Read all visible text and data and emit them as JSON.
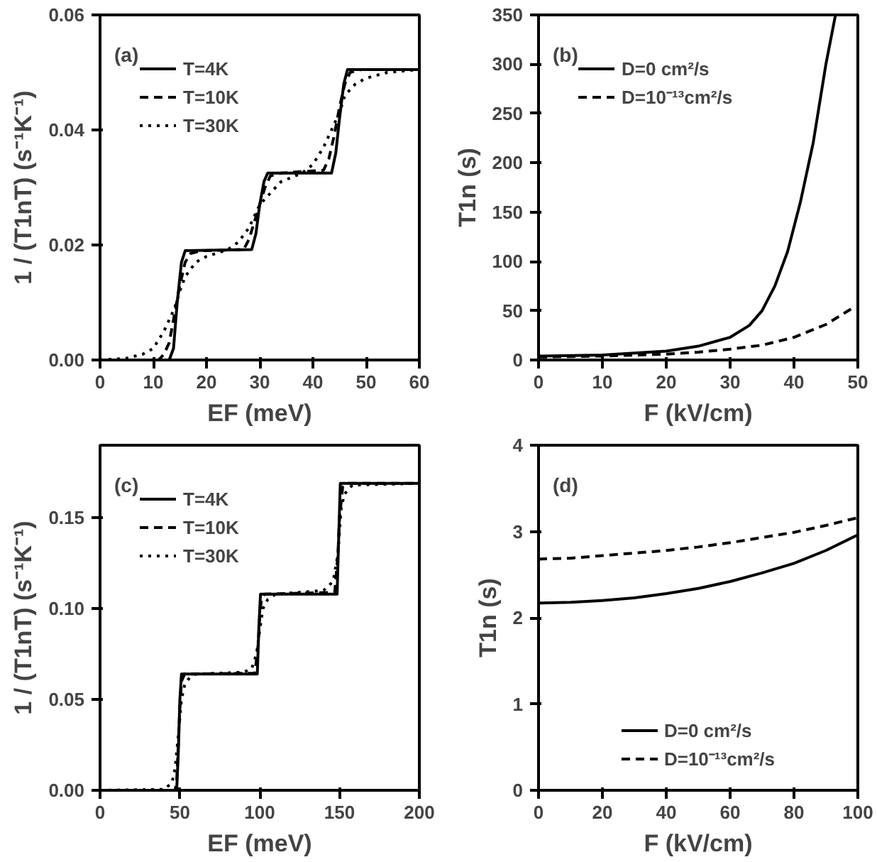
{
  "chart_data": [
    {
      "type": "line",
      "xlabel": "EF (meV)",
      "ylabel": "1 / (T1nT) (s⁻¹K⁻¹)",
      "annotations": [
        "(a)"
      ],
      "xlim": [
        0,
        60
      ],
      "ylim": [
        0,
        0.06
      ],
      "xticks": [
        0,
        10,
        20,
        30,
        40,
        50,
        60
      ],
      "yticks": [
        {
          "value": 0,
          "label": "0.00"
        },
        {
          "value": 0.02,
          "label": "0.02"
        },
        {
          "value": 0.04,
          "label": "0.04"
        },
        {
          "value": 0.06,
          "label": "0.06"
        }
      ],
      "grid": false,
      "legend": "top left",
      "series": [
        {
          "name": "T=4K",
          "color": "#000000",
          "line_style": "solid",
          "x": [
            0,
            13,
            13.8,
            14.5,
            15.3,
            16,
            28.5,
            29.3,
            30,
            30.8,
            31.5,
            43.5,
            44.3,
            45,
            45.8,
            46.5,
            60
          ],
          "values": [
            0,
            0,
            0.002,
            0.01,
            0.017,
            0.019,
            0.0192,
            0.022,
            0.027,
            0.031,
            0.0325,
            0.0325,
            0.036,
            0.042,
            0.048,
            0.0505,
            0.0505
          ]
        },
        {
          "name": "T=10K",
          "color": "#000000",
          "line_style": "dashed",
          "x": [
            0,
            11,
            12,
            13,
            14,
            15,
            16,
            17,
            19,
            27,
            28,
            29,
            30,
            31,
            32,
            34,
            42,
            43,
            44,
            45,
            46,
            47,
            49,
            60
          ],
          "values": [
            0,
            0,
            0.001,
            0.003,
            0.008,
            0.013,
            0.017,
            0.0185,
            0.019,
            0.0192,
            0.021,
            0.024,
            0.027,
            0.03,
            0.032,
            0.0325,
            0.033,
            0.035,
            0.039,
            0.044,
            0.048,
            0.05,
            0.0505,
            0.0505
          ]
        },
        {
          "name": "T=30K",
          "color": "#000000",
          "line_style": "dotted",
          "x": [
            0,
            5,
            8,
            10,
            12,
            14,
            15,
            16,
            18,
            20,
            24,
            26,
            28,
            30,
            32,
            34,
            38,
            40,
            42,
            44,
            45,
            46,
            48,
            50,
            54,
            60
          ],
          "values": [
            0,
            0.0003,
            0.001,
            0.002,
            0.005,
            0.009,
            0.012,
            0.0145,
            0.017,
            0.018,
            0.0192,
            0.0205,
            0.023,
            0.027,
            0.029,
            0.031,
            0.0325,
            0.034,
            0.037,
            0.041,
            0.043,
            0.046,
            0.048,
            0.049,
            0.05,
            0.0505
          ]
        }
      ]
    },
    {
      "type": "line",
      "xlabel": "F (kV/cm)",
      "ylabel": "T1n (s)",
      "annotations": [
        "(b)"
      ],
      "xlim": [
        0,
        50
      ],
      "ylim": [
        0,
        350
      ],
      "xticks": [
        0,
        10,
        20,
        30,
        40,
        50
      ],
      "yticks": [
        0,
        50,
        100,
        150,
        200,
        250,
        300,
        350
      ],
      "grid": false,
      "legend": "top left",
      "series": [
        {
          "name": "D=0 cm²/s",
          "color": "#000000",
          "line_style": "solid",
          "x": [
            0,
            10,
            20,
            25,
            30,
            33,
            35,
            37,
            39,
            41,
            43,
            45,
            46.5
          ],
          "values": [
            4,
            5,
            9,
            14,
            23,
            35,
            50,
            75,
            110,
            160,
            220,
            300,
            350
          ]
        },
        {
          "name": "D=10⁻¹³cm²/s",
          "color": "#000000",
          "line_style": "dashed",
          "x": [
            0,
            10,
            20,
            25,
            30,
            35,
            40,
            45,
            49
          ],
          "values": [
            3,
            4,
            6,
            8,
            11,
            15,
            23,
            36,
            52
          ]
        }
      ]
    },
    {
      "type": "line",
      "xlabel": "EF (meV)",
      "ylabel": "1 / (T1nT) (s⁻¹K⁻¹)",
      "annotations": [
        "(c)"
      ],
      "xlim": [
        0,
        200
      ],
      "ylim": [
        0,
        0.19
      ],
      "xticks": [
        0,
        50,
        100,
        150,
        200
      ],
      "yticks": [
        {
          "value": 0,
          "label": "0.00"
        },
        {
          "value": 0.05,
          "label": "0.05"
        },
        {
          "value": 0.1,
          "label": "0.10"
        },
        {
          "value": 0.15,
          "label": "0.15"
        }
      ],
      "grid": false,
      "legend": "top left",
      "series": [
        {
          "name": "T=4K",
          "color": "#000000",
          "line_style": "solid",
          "x": [
            0,
            48,
            49,
            50,
            51,
            98.5,
            99.5,
            100.5,
            148.5,
            149.5,
            150.5,
            200
          ],
          "values": [
            0,
            0,
            0.02,
            0.05,
            0.064,
            0.064,
            0.09,
            0.108,
            0.108,
            0.14,
            0.169,
            0.169
          ]
        },
        {
          "name": "T=10K",
          "color": "#000000",
          "line_style": "dashed",
          "x": [
            0,
            47,
            48,
            49,
            50,
            51,
            53,
            97,
            99,
            100,
            101,
            103,
            147,
            149,
            150,
            152,
            155,
            200
          ],
          "values": [
            0,
            0,
            0.005,
            0.025,
            0.045,
            0.06,
            0.064,
            0.0645,
            0.08,
            0.095,
            0.105,
            0.108,
            0.109,
            0.13,
            0.15,
            0.167,
            0.169,
            0.169
          ]
        },
        {
          "name": "T=30K",
          "color": "#000000",
          "line_style": "dotted",
          "x": [
            0,
            40,
            45,
            47,
            49,
            51,
            53,
            56,
            60,
            90,
            95,
            98,
            100,
            102,
            105,
            110,
            140,
            146,
            149,
            151,
            153,
            158,
            200
          ],
          "values": [
            0,
            0.0005,
            0.004,
            0.012,
            0.03,
            0.05,
            0.058,
            0.062,
            0.064,
            0.065,
            0.067,
            0.075,
            0.088,
            0.1,
            0.105,
            0.108,
            0.11,
            0.115,
            0.13,
            0.155,
            0.163,
            0.168,
            0.169
          ]
        }
      ]
    },
    {
      "type": "line",
      "xlabel": "F (kV/cm)",
      "ylabel": "T1n (s)",
      "annotations": [
        "(d)"
      ],
      "xlim": [
        0,
        100
      ],
      "ylim": [
        0,
        4
      ],
      "xticks": [
        0,
        20,
        40,
        60,
        80,
        100
      ],
      "yticks": [
        0,
        1,
        2,
        3,
        4
      ],
      "grid": false,
      "legend": "bottom",
      "series": [
        {
          "name": "D=0 cm²/s",
          "color": "#000000",
          "line_style": "solid",
          "x": [
            0,
            10,
            20,
            30,
            40,
            50,
            60,
            70,
            80,
            90,
            100
          ],
          "values": [
            2.17,
            2.18,
            2.2,
            2.23,
            2.28,
            2.34,
            2.42,
            2.52,
            2.63,
            2.78,
            2.96
          ]
        },
        {
          "name": "D=10⁻¹³cm²/s",
          "color": "#000000",
          "line_style": "dashed",
          "x": [
            0,
            10,
            20,
            30,
            40,
            50,
            60,
            70,
            80,
            90,
            100
          ],
          "values": [
            2.68,
            2.69,
            2.72,
            2.75,
            2.78,
            2.82,
            2.87,
            2.93,
            2.99,
            3.07,
            3.16
          ]
        }
      ]
    }
  ]
}
